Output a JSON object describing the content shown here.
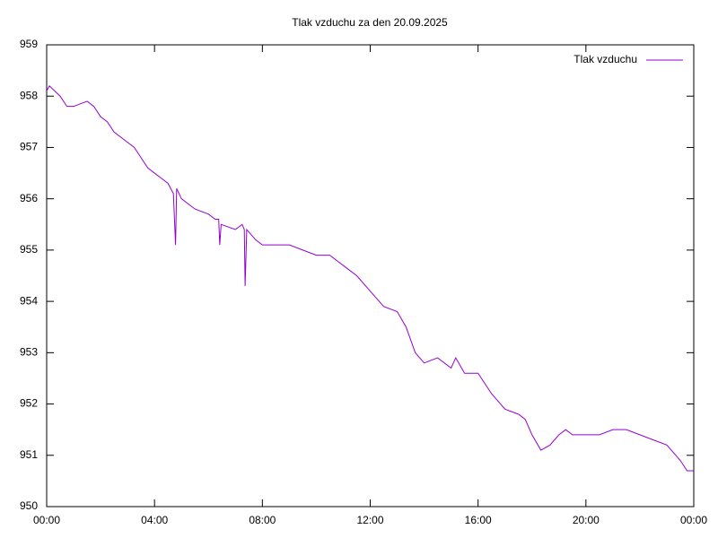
{
  "chart_data": {
    "type": "line",
    "title": "Tlak vzduchu za den 20.09.2025",
    "x": [
      0,
      0.1,
      0.5,
      0.75,
      1.0,
      1.5,
      1.75,
      2.0,
      2.25,
      2.5,
      2.75,
      3.0,
      3.25,
      3.5,
      3.75,
      4.0,
      4.25,
      4.5,
      4.7,
      4.78,
      4.82,
      5.0,
      5.5,
      6.0,
      6.25,
      6.38,
      6.42,
      6.47,
      7.0,
      7.25,
      7.33,
      7.36,
      7.42,
      7.75,
      8.0,
      8.5,
      9.0,
      9.5,
      10.0,
      10.5,
      11.0,
      11.5,
      12.0,
      12.5,
      13.0,
      13.33,
      13.67,
      14.0,
      14.5,
      15.0,
      15.17,
      15.5,
      16.0,
      16.5,
      17.0,
      17.5,
      17.75,
      18.0,
      18.33,
      18.67,
      19.0,
      19.25,
      19.5,
      20.0,
      20.5,
      21.0,
      21.5,
      22.0,
      22.5,
      23.0,
      23.5,
      23.75,
      24.0
    ],
    "series": [
      {
        "name": "Tlak vzduchu",
        "color": "#9400d3",
        "values": [
          958.1,
          958.2,
          958.0,
          957.8,
          957.8,
          957.9,
          957.8,
          957.6,
          957.5,
          957.3,
          957.2,
          957.1,
          957.0,
          956.8,
          956.6,
          956.5,
          956.4,
          956.3,
          956.1,
          955.1,
          956.2,
          956.0,
          955.8,
          955.7,
          955.6,
          955.6,
          955.1,
          955.5,
          955.4,
          955.5,
          955.4,
          954.3,
          955.4,
          955.2,
          955.1,
          955.1,
          955.1,
          955.0,
          954.9,
          954.9,
          954.7,
          954.5,
          954.2,
          953.9,
          953.8,
          953.5,
          953.0,
          952.8,
          952.9,
          952.7,
          952.9,
          952.6,
          952.6,
          952.2,
          951.9,
          951.8,
          951.7,
          951.4,
          951.1,
          951.2,
          951.4,
          951.5,
          951.4,
          951.4,
          951.4,
          951.5,
          951.5,
          951.4,
          951.3,
          951.2,
          950.9,
          950.7,
          950.7
        ]
      }
    ],
    "xlim": [
      0,
      24
    ],
    "xticks": [
      {
        "value": 0,
        "label": "00:00"
      },
      {
        "value": 4,
        "label": "04:00"
      },
      {
        "value": 8,
        "label": "08:00"
      },
      {
        "value": 12,
        "label": "12:00"
      },
      {
        "value": 16,
        "label": "16:00"
      },
      {
        "value": 20,
        "label": "20:00"
      },
      {
        "value": 24,
        "label": "00:00"
      }
    ],
    "ylim": [
      950,
      959
    ],
    "yticks": [
      950,
      951,
      952,
      953,
      954,
      955,
      956,
      957,
      958,
      959
    ],
    "legend": "top-right"
  }
}
